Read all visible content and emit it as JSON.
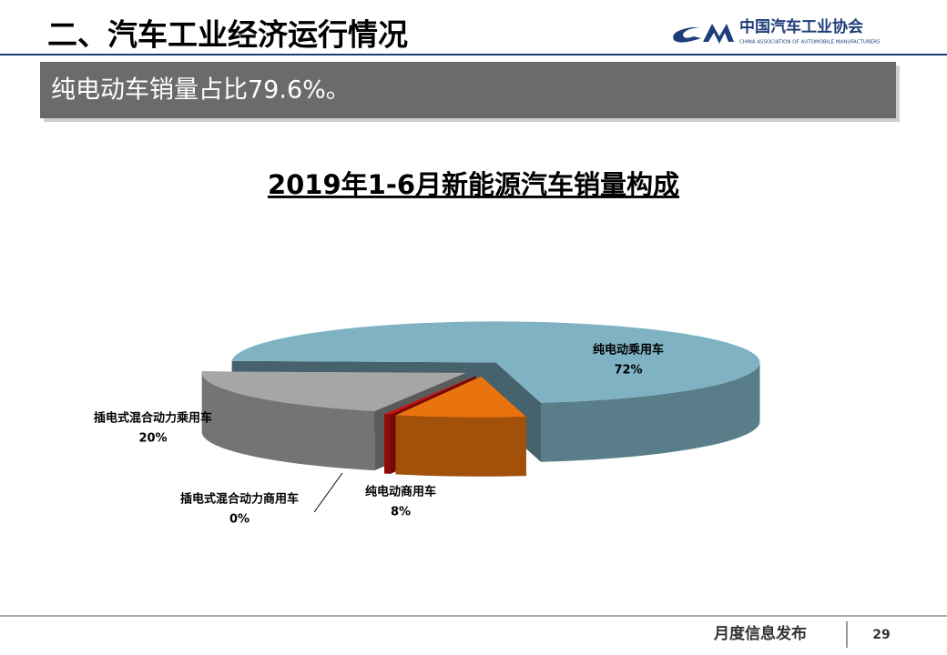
{
  "header": {
    "title": "二、汽车工业经济运行情况",
    "logo_name": "中国汽车工业协会",
    "logo_english": "CHINA ASSOCIATION OF AUTOMOBILE MANUFACTURERS"
  },
  "banner": "纯电动车销量占比79.6%。",
  "chart_data": {
    "type": "pie",
    "title": "2019年1-6月新能源汽车销量构成",
    "categories": [
      "纯电动乘用车",
      "纯电动商用车",
      "插电式混合动力商用车",
      "插电式混合动力乘用车"
    ],
    "values": [
      72,
      8,
      0.4,
      20
    ],
    "value_labels": [
      "72%",
      "8%",
      "0%",
      "20%"
    ],
    "colors": [
      "#7fb3c4",
      "#e8730f",
      "#d01010",
      "#a6a6a6"
    ]
  },
  "footer": {
    "text": "月度信息发布",
    "page": "29"
  }
}
